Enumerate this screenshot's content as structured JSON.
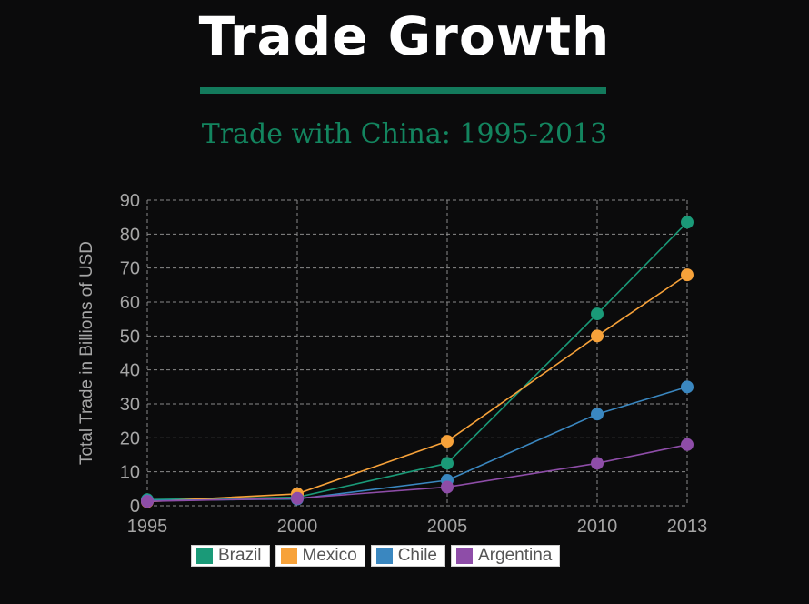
{
  "header": {
    "title": "Trade Growth",
    "subtitle": "Trade with China: 1995-2013"
  },
  "colors": {
    "title_rule": "#137a5c",
    "subtitle": "#13855f",
    "grid": "#8a8a8a",
    "axis_text": "#a6a6a6"
  },
  "chart_data": {
    "type": "line",
    "title": "Trade with China: 1995-2013",
    "xlabel": "",
    "ylabel": "Total Trade in Billions of USD",
    "x": [
      1995,
      2000,
      2005,
      2010,
      2013
    ],
    "x_tick_labels": [
      "1995",
      "2000",
      "2005",
      "2010",
      "2013"
    ],
    "ylim": [
      0,
      90
    ],
    "y_ticks": [
      0,
      10,
      20,
      30,
      40,
      50,
      60,
      70,
      80,
      90
    ],
    "grid": true,
    "legend_position": "bottom",
    "series": [
      {
        "name": "Brazil",
        "color": "#1a9a78",
        "values": [
          1.8,
          2.5,
          12.5,
          56.5,
          83.5
        ]
      },
      {
        "name": "Mexico",
        "color": "#f7a23a",
        "values": [
          1.2,
          3.5,
          19,
          50,
          68
        ]
      },
      {
        "name": "Chile",
        "color": "#3a87c0",
        "values": [
          1.5,
          2.0,
          7.5,
          27,
          35
        ]
      },
      {
        "name": "Argentina",
        "color": "#8e4da8",
        "values": [
          1.3,
          2.2,
          5.5,
          12.5,
          18
        ]
      }
    ]
  }
}
